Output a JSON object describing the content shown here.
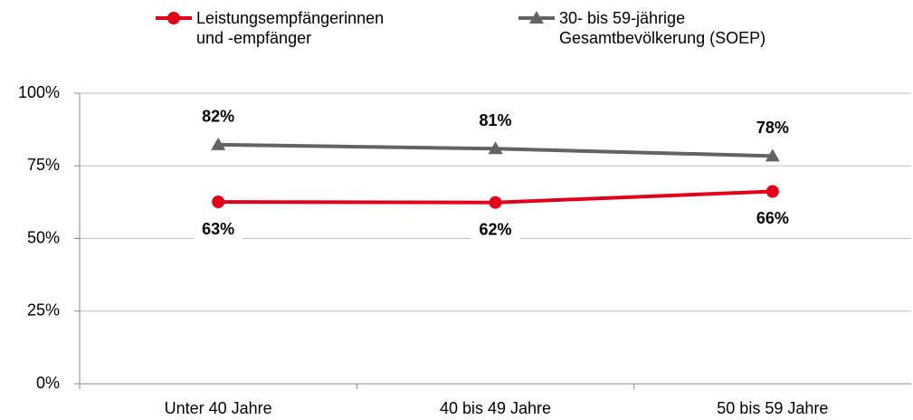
{
  "chart_data": {
    "type": "line",
    "categories": [
      "Unter 40 Jahre",
      "40 bis 49 Jahre",
      "50 bis 59 Jahre"
    ],
    "series": [
      {
        "name": "Leistungsempfängerinnen\nund -empfänger",
        "color": "#e3001b",
        "marker": "circle",
        "values": [
          62.6,
          62.4,
          66.2
        ],
        "value_labels": [
          "63%",
          "62%",
          "66%"
        ],
        "label_position": "below"
      },
      {
        "name": "30- bis 59-jährige\nGesamtbevölkerung (SOEP)",
        "color": "#636363",
        "marker": "triangle",
        "values": [
          82.3,
          80.9,
          78.4
        ],
        "value_labels": [
          "82%",
          "81%",
          "78%"
        ],
        "label_position": "above"
      }
    ],
    "ylim": [
      0,
      100
    ],
    "yticks": [
      {
        "value": 0,
        "label": "0%"
      },
      {
        "value": 25,
        "label": "25%"
      },
      {
        "value": 50,
        "label": "50%"
      },
      {
        "value": 75,
        "label": "75%"
      },
      {
        "value": 100,
        "label": "100%"
      }
    ],
    "grid": true,
    "legend": "top"
  }
}
